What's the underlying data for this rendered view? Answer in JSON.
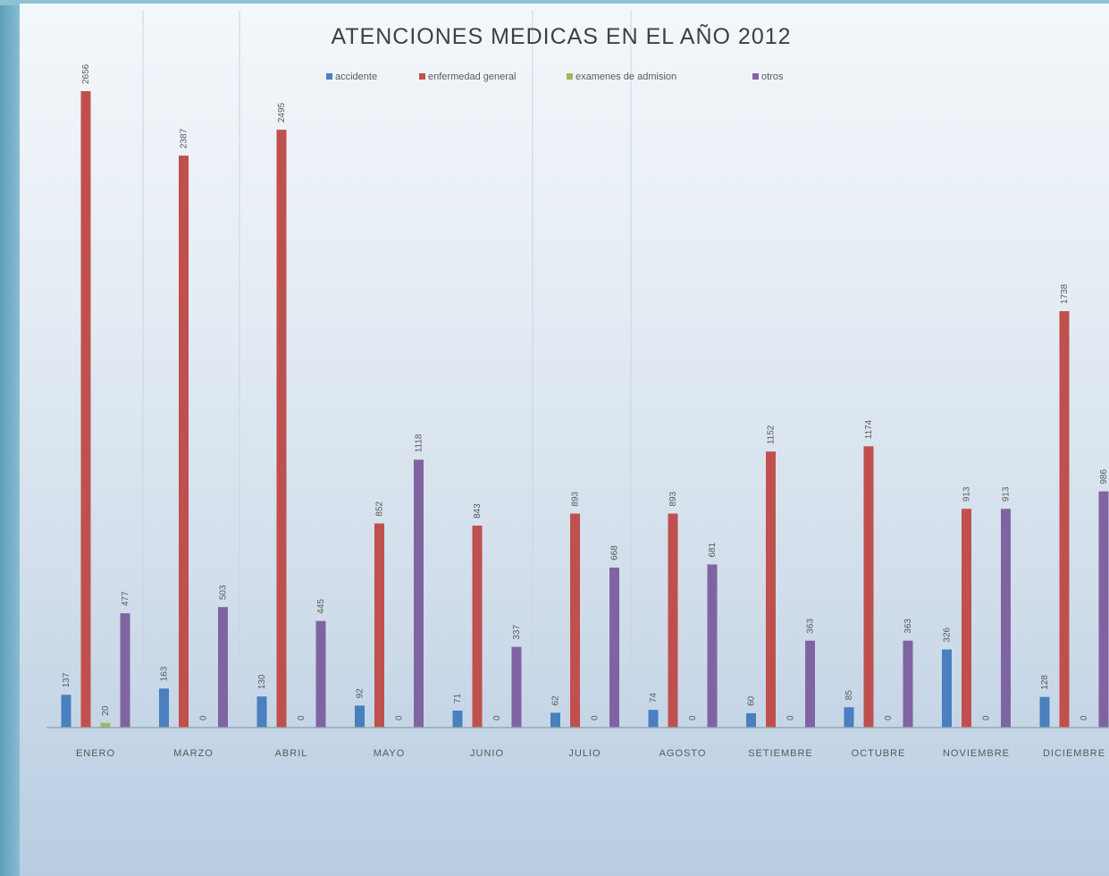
{
  "colors": {
    "accidente": "#4a7fc0",
    "enfermedad_general": "#c0504d",
    "examenes_de_admision": "#9bbb59",
    "otros": "#8064a2"
  },
  "chart_data": {
    "type": "bar",
    "title": "ATENCIONES MEDICAS EN EL AÑO 2012",
    "categories": [
      "ENERO",
      "MARZO",
      "ABRIL",
      "MAYO",
      "JUNIO",
      "JULIO",
      "AGOSTO",
      "SETIEMBRE",
      "OCTUBRE",
      "NOVIEMBRE",
      "DICIEMBRE"
    ],
    "series": [
      {
        "name": "accidente",
        "values": [
          137,
          163,
          130,
          92,
          71,
          62,
          74,
          60,
          85,
          326,
          128
        ]
      },
      {
        "name": "enfermedad general",
        "values": [
          2656,
          2387,
          2495,
          852,
          843,
          893,
          893,
          1152,
          1174,
          913,
          1738
        ]
      },
      {
        "name": "examenes de admision",
        "values": [
          20,
          0,
          0,
          0,
          0,
          0,
          0,
          0,
          0,
          0,
          0
        ]
      },
      {
        "name": "otros",
        "values": [
          477,
          503,
          445,
          1118,
          337,
          668,
          681,
          363,
          363,
          913,
          986
        ]
      }
    ],
    "ylim": [
      0,
      2700
    ],
    "grid": false,
    "legend": "top"
  }
}
